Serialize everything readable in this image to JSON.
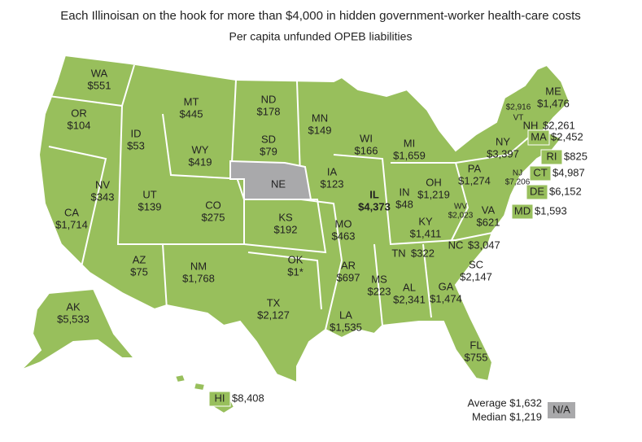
{
  "title": "Each Illinoisan on the hook for more than $4,000 in hidden government-worker health-care costs",
  "subtitle": "Per capita unfunded OPEB liabilities",
  "states": [
    {
      "abbr": "WA",
      "value": "$551"
    },
    {
      "abbr": "OR",
      "value": "$104"
    },
    {
      "abbr": "CA",
      "value": "$1,714"
    },
    {
      "abbr": "NV",
      "value": "$343"
    },
    {
      "abbr": "ID",
      "value": "$53"
    },
    {
      "abbr": "MT",
      "value": "$445"
    },
    {
      "abbr": "WY",
      "value": "$419"
    },
    {
      "abbr": "UT",
      "value": "$139"
    },
    {
      "abbr": "AZ",
      "value": "$75"
    },
    {
      "abbr": "CO",
      "value": "$275"
    },
    {
      "abbr": "NM",
      "value": "$1,768"
    },
    {
      "abbr": "ND",
      "value": "$178"
    },
    {
      "abbr": "SD",
      "value": "$79"
    },
    {
      "abbr": "NE"
    },
    {
      "abbr": "KS",
      "value": "$192"
    },
    {
      "abbr": "OK",
      "value": "$1*"
    },
    {
      "abbr": "TX",
      "value": "$2,127"
    },
    {
      "abbr": "MN",
      "value": "$149"
    },
    {
      "abbr": "IA",
      "value": "$123"
    },
    {
      "abbr": "MO",
      "value": "$463"
    },
    {
      "abbr": "AR",
      "value": "$697"
    },
    {
      "abbr": "LA",
      "value": "$1,535"
    },
    {
      "abbr": "WI",
      "value": "$166"
    },
    {
      "abbr": "IL",
      "value": "$4,373"
    },
    {
      "abbr": "MI",
      "value": "$1,659"
    },
    {
      "abbr": "IN",
      "value": "$48"
    },
    {
      "abbr": "OH",
      "value": "$1,219"
    },
    {
      "abbr": "KY",
      "value": "$1,411"
    },
    {
      "abbr": "TN",
      "value": "$322"
    },
    {
      "abbr": "MS",
      "value": "$223"
    },
    {
      "abbr": "AL",
      "value": "$2,341"
    },
    {
      "abbr": "GA",
      "value": "$1,474"
    },
    {
      "abbr": "FL",
      "value": "$755"
    },
    {
      "abbr": "SC",
      "value": "$2,147"
    },
    {
      "abbr": "NC",
      "value": "$3,047"
    },
    {
      "abbr": "VA",
      "value": "$621"
    },
    {
      "abbr": "WV",
      "value": "$2,023"
    },
    {
      "abbr": "PA",
      "value": "$1,274"
    },
    {
      "abbr": "NY",
      "value": "$3,397"
    },
    {
      "abbr": "VT",
      "value": "$2,916"
    },
    {
      "abbr": "NH",
      "value": "$2,261"
    },
    {
      "abbr": "ME",
      "value": "$1,476"
    },
    {
      "abbr": "MA",
      "value": "$2,452"
    },
    {
      "abbr": "RI",
      "value": "$825"
    },
    {
      "abbr": "CT",
      "value": "$4,987"
    },
    {
      "abbr": "NJ",
      "value": "$7,206"
    },
    {
      "abbr": "DE",
      "value": "$6,152"
    },
    {
      "abbr": "MD",
      "value": "$1,593"
    },
    {
      "abbr": "AK",
      "value": "$5,533"
    },
    {
      "abbr": "HI",
      "value": "$8,408"
    }
  ],
  "legend": {
    "average": "Average $1,632",
    "median": "Median $1,219",
    "na": "N/A"
  }
}
